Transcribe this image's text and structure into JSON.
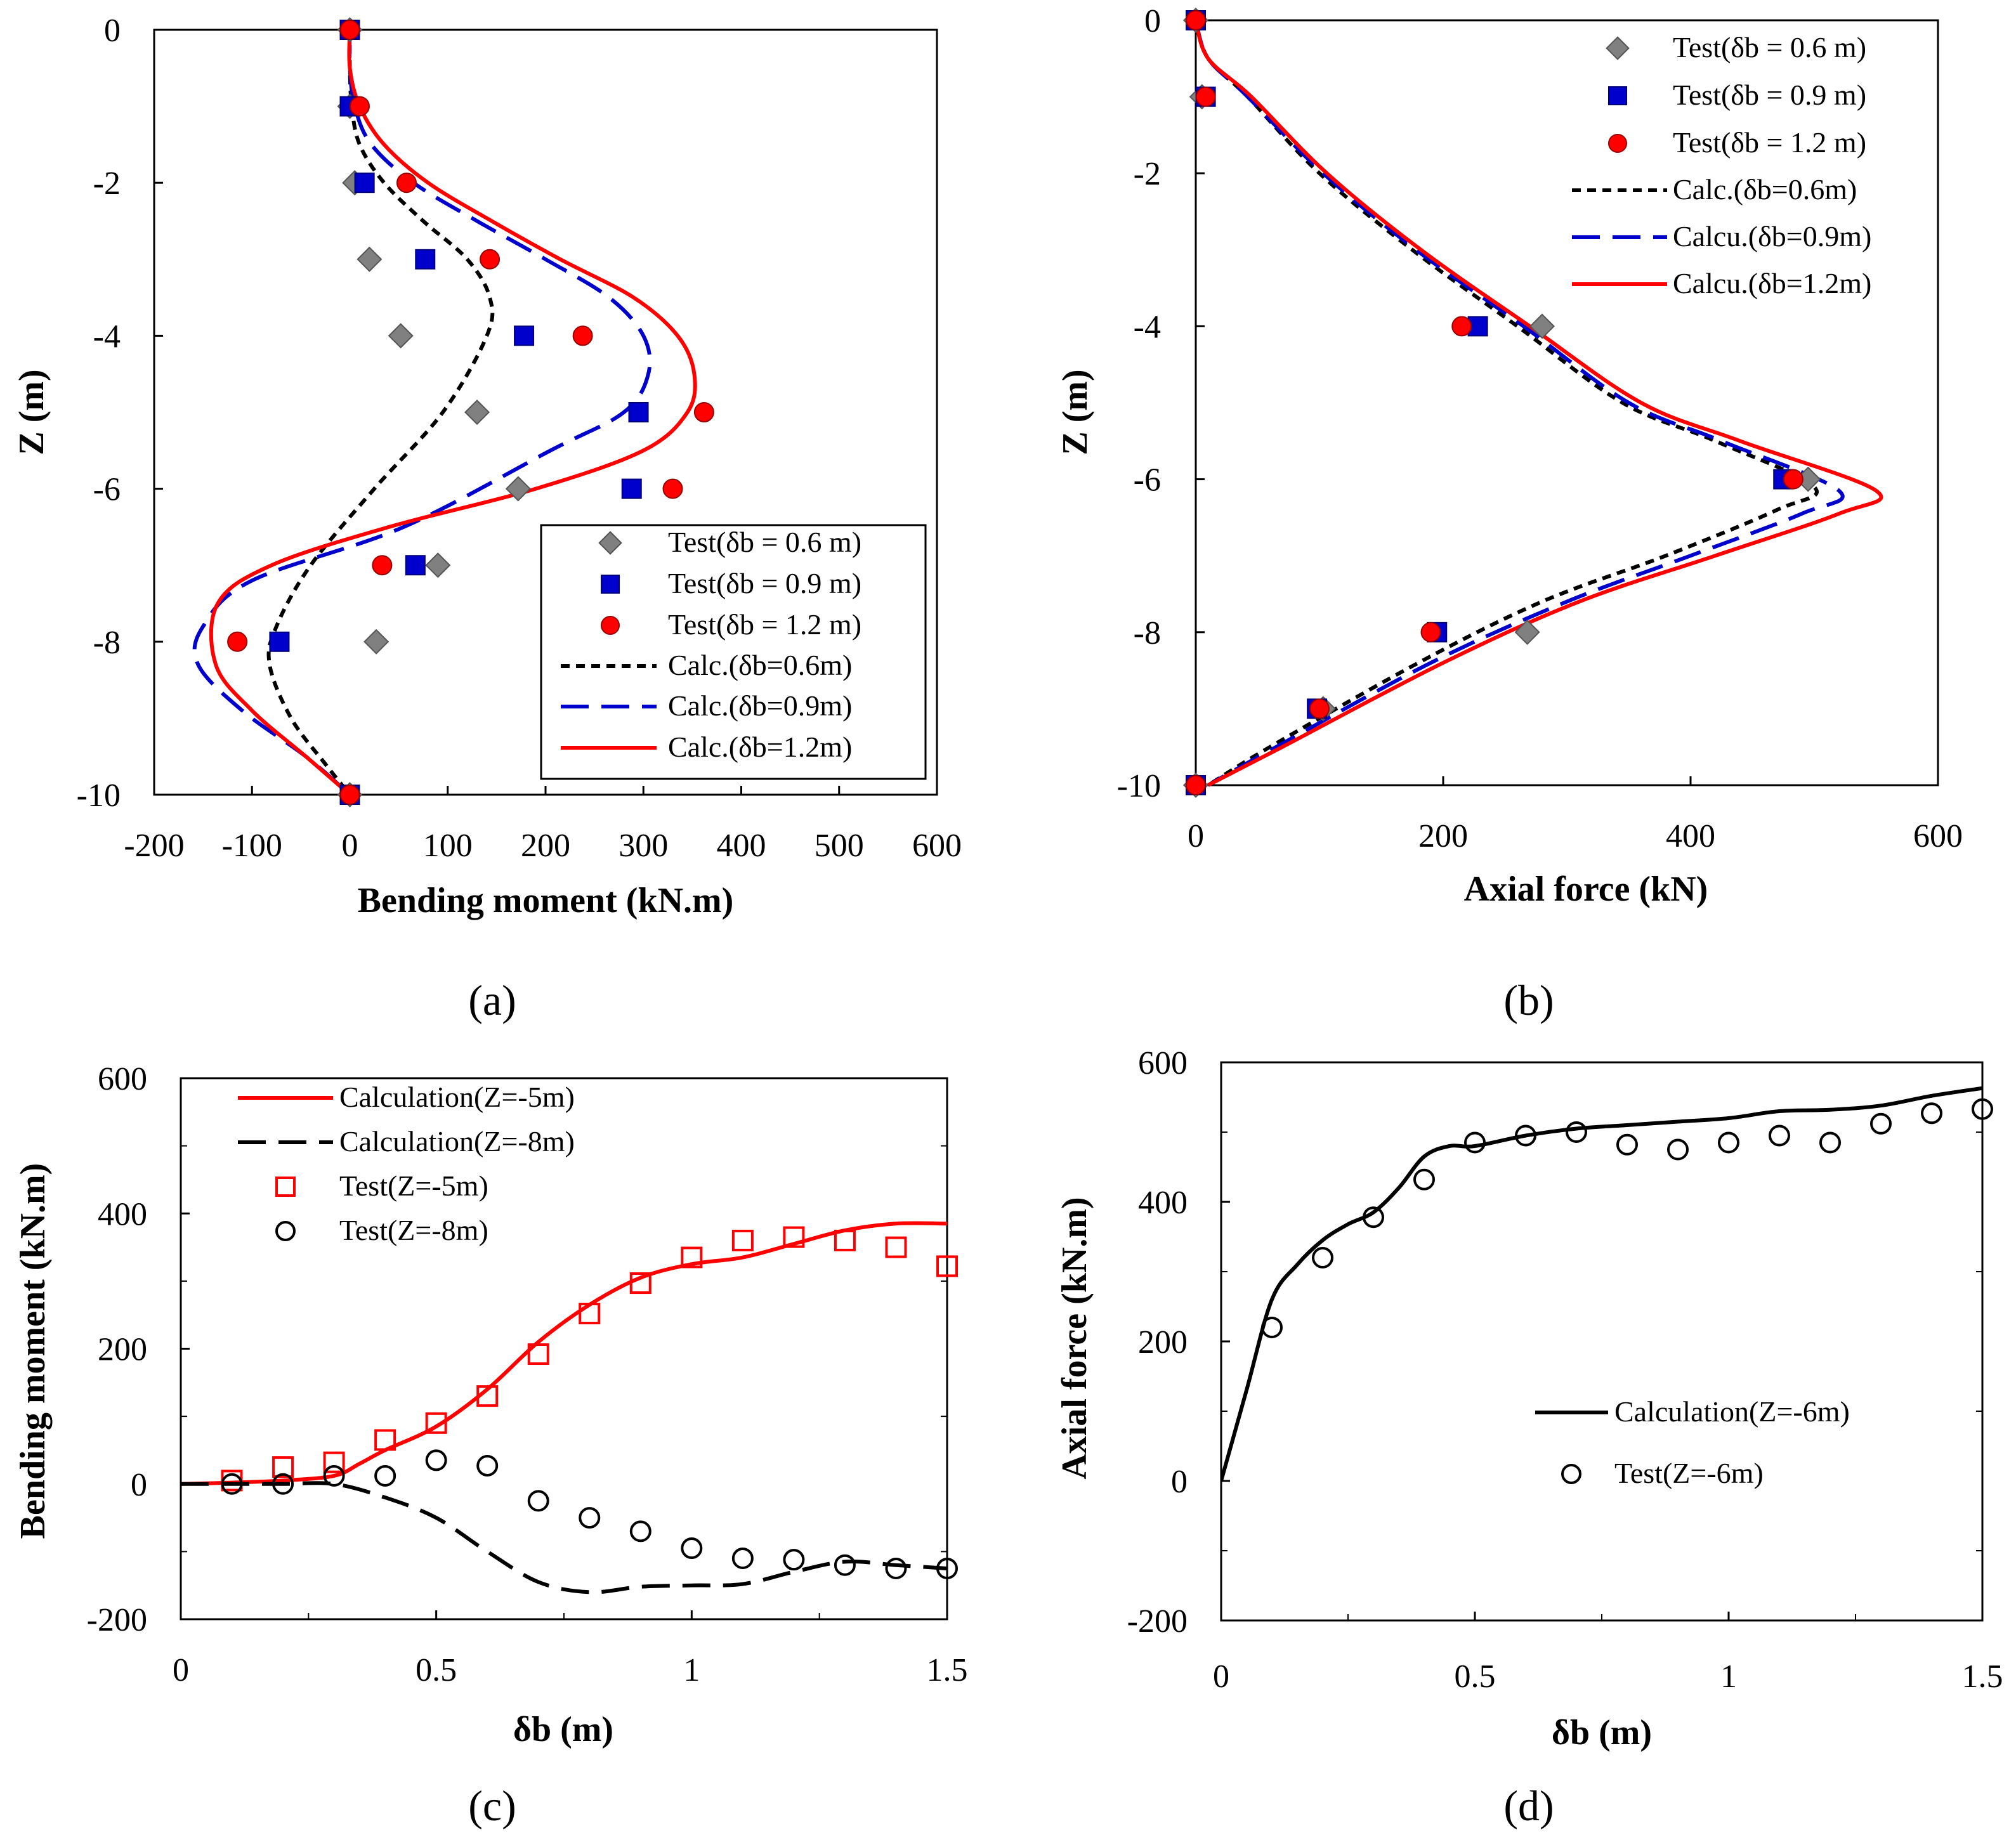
{
  "chart_data": [
    {
      "type": "scatter",
      "panel": "a",
      "caption": "(a)",
      "xlabel": "Bending moment (kN.m)",
      "ylabel": "Z (m)",
      "xlim": [
        -200,
        600
      ],
      "ylim": [
        -10,
        0
      ],
      "xticks": [
        "-200",
        "-100",
        "0",
        "100",
        "200",
        "300",
        "400",
        "500",
        "600"
      ],
      "yticks": [
        "0",
        "-2",
        "-4",
        "-6",
        "-8",
        "-10"
      ],
      "legend": "bottom-right",
      "series": [
        {
          "name": "Test(δb = 0.6 m)",
          "kind": "marker",
          "marker": "diamond",
          "color": "#808080",
          "x": [
            0,
            0,
            5,
            20,
            52,
            130,
            172,
            90,
            27,
            0
          ],
          "y": [
            0,
            -1,
            -2,
            -3,
            -4,
            -5,
            -6,
            -7,
            -8,
            -10
          ]
        },
        {
          "name": "Test(δb = 0.9 m)",
          "kind": "marker",
          "marker": "square",
          "color": "#0000cc",
          "x": [
            0,
            0,
            15,
            77,
            178,
            295,
            288,
            67,
            -72,
            0
          ],
          "y": [
            0,
            -1,
            -2,
            -3,
            -4,
            -5,
            -6,
            -7,
            -8,
            -10
          ]
        },
        {
          "name": "Test(δb = 1.2 m)",
          "kind": "marker",
          "marker": "circle",
          "color": "#ff0000",
          "x": [
            0,
            10,
            58,
            143,
            238,
            362,
            330,
            33,
            -115,
            0
          ],
          "y": [
            0,
            -1,
            -2,
            -3,
            -4,
            -5,
            -6,
            -7,
            -8,
            -10
          ]
        },
        {
          "name": "Calc.(δb=0.6m)",
          "kind": "line",
          "dash": "short",
          "color": "#000000",
          "x": [
            0,
            0,
            2,
            10,
            35,
            75,
            120,
            143,
            140,
            95,
            25,
            -40,
            -75,
            -82,
            -60,
            -25,
            0
          ],
          "y": [
            0,
            -0.5,
            -1,
            -1.5,
            -2,
            -2.5,
            -3,
            -3.5,
            -4,
            -5,
            -6,
            -7,
            -7.8,
            -8.3,
            -9,
            -9.6,
            -10
          ]
        },
        {
          "name": "Calc.(δb=0.9m)",
          "kind": "line",
          "dash": "long",
          "color": "#0000cc",
          "x": [
            0,
            0,
            5,
            22,
            65,
            130,
            200,
            265,
            300,
            305,
            280,
            205,
            55,
            -100,
            -150,
            -155,
            -110,
            -45,
            0
          ],
          "y": [
            0,
            -0.5,
            -1,
            -1.5,
            -2,
            -2.5,
            -3,
            -3.5,
            -4,
            -4.5,
            -5,
            -5.5,
            -6.5,
            -7.2,
            -7.8,
            -8.3,
            -8.9,
            -9.5,
            -10
          ]
        },
        {
          "name": "Calc.(δb=1.2m)",
          "kind": "line",
          "dash": "solid",
          "color": "#ff0000",
          "x": [
            0,
            0,
            10,
            35,
            80,
            145,
            215,
            290,
            335,
            352,
            345,
            300,
            190,
            40,
            -80,
            -135,
            -137,
            -100,
            -45,
            0
          ],
          "y": [
            0,
            -0.5,
            -1,
            -1.5,
            -2,
            -2.5,
            -3,
            -3.5,
            -4,
            -4.5,
            -5,
            -5.5,
            -6,
            -6.5,
            -7,
            -7.5,
            -8.3,
            -8.9,
            -9.5,
            -10
          ]
        }
      ]
    },
    {
      "type": "scatter",
      "panel": "b",
      "caption": "(b)",
      "xlabel": "Axial force (kN)",
      "ylabel": "Z (m)",
      "xlim": [
        0,
        600
      ],
      "ylim": [
        -10,
        0
      ],
      "xticks": [
        "0",
        "200",
        "400",
        "600"
      ],
      "yticks": [
        "0",
        "-2",
        "-4",
        "-6",
        "-8",
        "-10"
      ],
      "legend": "top-right",
      "series": [
        {
          "name": "Test(δb = 0.6 m)",
          "kind": "marker",
          "marker": "diamond",
          "color": "#808080",
          "x": [
            0,
            5,
            280,
            495,
            268,
            103,
            0
          ],
          "y": [
            0,
            -1,
            -4,
            -6,
            -8,
            -9,
            -10
          ]
        },
        {
          "name": "Test(δb = 0.9 m)",
          "kind": "marker",
          "marker": "square",
          "color": "#0000cc",
          "x": [
            0,
            8,
            228,
            475,
            195,
            98,
            0
          ],
          "y": [
            0,
            -1,
            -4,
            -6,
            -8,
            -9,
            -10
          ]
        },
        {
          "name": "Test(δb = 1.2 m)",
          "kind": "marker",
          "marker": "circle",
          "color": "#ff0000",
          "x": [
            0,
            8,
            215,
            483,
            190,
            100,
            0
          ],
          "y": [
            0,
            -1,
            -4,
            -6,
            -8,
            -9,
            -10
          ]
        },
        {
          "name": "Calc.(δb=0.6m)",
          "kind": "line",
          "dash": "short",
          "color": "#000000",
          "x": [
            0,
            10,
            42,
            100,
            175,
            260,
            345,
            420,
            500,
            470,
            380,
            280,
            180,
            60,
            10
          ],
          "y": [
            0,
            -0.5,
            -1,
            -2,
            -3,
            -4,
            -5,
            -5.5,
            -6.1,
            -6.4,
            -7,
            -7.6,
            -8.4,
            -9.5,
            -10
          ]
        },
        {
          "name": "Calcu.(δb=0.9m)",
          "kind": "line",
          "dash": "long",
          "color": "#0000cc",
          "x": [
            0,
            10,
            42,
            103,
            178,
            265,
            350,
            425,
            520,
            490,
            400,
            300,
            190,
            65,
            10
          ],
          "y": [
            0,
            -0.5,
            -1,
            -2,
            -3,
            -4,
            -5,
            -5.5,
            -6.15,
            -6.45,
            -7,
            -7.6,
            -8.4,
            -9.5,
            -10
          ]
        },
        {
          "name": "Calcu.(δb=1.2m)",
          "kind": "line",
          "dash": "solid",
          "color": "#ff0000",
          "x": [
            0,
            10,
            45,
            106,
            182,
            270,
            360,
            440,
            550,
            520,
            420,
            310,
            200,
            70,
            10
          ],
          "y": [
            0,
            -0.5,
            -1,
            -2,
            -3,
            -4,
            -5,
            -5.5,
            -6.15,
            -6.45,
            -7,
            -7.6,
            -8.4,
            -9.5,
            -10
          ]
        }
      ]
    },
    {
      "type": "scatter",
      "panel": "c",
      "caption": "(c)",
      "xlabel": "δb (m)",
      "ylabel": "Bending moment (kN.m)",
      "xlim": [
        0,
        1.5
      ],
      "ylim": [
        -200,
        600
      ],
      "xticks": [
        "0",
        "0.5",
        "1",
        "1.5"
      ],
      "yticks": [
        "600",
        "400",
        "200",
        "0",
        "-200"
      ],
      "legend": "top-left",
      "series": [
        {
          "name": "Calculation(Z=-5m)",
          "kind": "line",
          "dash": "solid",
          "color": "#ff0000",
          "x": [
            0,
            0.1,
            0.2,
            0.3,
            0.35,
            0.4,
            0.5,
            0.6,
            0.7,
            0.8,
            0.9,
            1.0,
            1.1,
            1.2,
            1.3,
            1.4,
            1.5
          ],
          "y": [
            0,
            2,
            5,
            12,
            30,
            50,
            85,
            140,
            210,
            265,
            305,
            325,
            335,
            355,
            375,
            385,
            385
          ]
        },
        {
          "name": "Calculation(Z=-8m)",
          "kind": "line",
          "dash": "long",
          "color": "#000000",
          "x": [
            0,
            0.1,
            0.2,
            0.3,
            0.4,
            0.5,
            0.6,
            0.7,
            0.8,
            0.9,
            1.0,
            1.1,
            1.2,
            1.3,
            1.4,
            1.5
          ],
          "y": [
            0,
            0,
            0,
            0,
            -20,
            -50,
            -100,
            -145,
            -160,
            -152,
            -150,
            -148,
            -130,
            -115,
            -120,
            -125
          ]
        },
        {
          "name": "Test(Z=-5m)",
          "kind": "marker",
          "marker": "open-square",
          "color": "#ff0000",
          "x": [
            0.1,
            0.2,
            0.3,
            0.4,
            0.5,
            0.6,
            0.7,
            0.8,
            0.9,
            1.0,
            1.1,
            1.2,
            1.3,
            1.4,
            1.5
          ],
          "y": [
            5,
            25,
            32,
            65,
            90,
            130,
            192,
            252,
            297,
            335,
            360,
            365,
            360,
            350,
            322
          ]
        },
        {
          "name": "Test(Z=-8m)",
          "kind": "marker",
          "marker": "open-circle",
          "color": "#000000",
          "x": [
            0.1,
            0.2,
            0.3,
            0.4,
            0.5,
            0.6,
            0.7,
            0.8,
            0.9,
            1.0,
            1.1,
            1.2,
            1.3,
            1.4,
            1.5
          ],
          "y": [
            0,
            0,
            12,
            12,
            35,
            27,
            -25,
            -50,
            -70,
            -95,
            -110,
            -112,
            -120,
            -125,
            -125
          ]
        }
      ]
    },
    {
      "type": "scatter",
      "panel": "d",
      "caption": "(d)",
      "xlabel": "δb (m)",
      "ylabel": "Axial force (kN.m)",
      "xlim": [
        0,
        1.5
      ],
      "ylim": [
        -200,
        600
      ],
      "xticks": [
        "0",
        "0.5",
        "1",
        "1.5"
      ],
      "yticks": [
        "600",
        "400",
        "200",
        "0",
        "-200"
      ],
      "legend": "center-right",
      "series": [
        {
          "name": "Calculation(Z=-6m)",
          "kind": "line",
          "dash": "solid",
          "color": "#000000",
          "x": [
            0,
            0.05,
            0.1,
            0.15,
            0.2,
            0.25,
            0.3,
            0.35,
            0.4,
            0.45,
            0.5,
            0.6,
            0.7,
            0.8,
            0.9,
            1.0,
            1.1,
            1.2,
            1.3,
            1.4,
            1.5
          ],
          "y": [
            0,
            130,
            260,
            310,
            345,
            368,
            385,
            420,
            465,
            480,
            480,
            495,
            505,
            510,
            515,
            520,
            530,
            532,
            538,
            552,
            563
          ]
        },
        {
          "name": "Test(Z=-6m)",
          "kind": "marker",
          "marker": "open-circle",
          "color": "#000000",
          "x": [
            0.1,
            0.2,
            0.3,
            0.4,
            0.5,
            0.6,
            0.7,
            0.8,
            0.9,
            1.0,
            1.1,
            1.2,
            1.3,
            1.4,
            1.5
          ],
          "y": [
            220,
            320,
            378,
            432,
            485,
            495,
            500,
            482,
            475,
            485,
            495,
            485,
            512,
            527,
            533
          ]
        }
      ]
    }
  ]
}
